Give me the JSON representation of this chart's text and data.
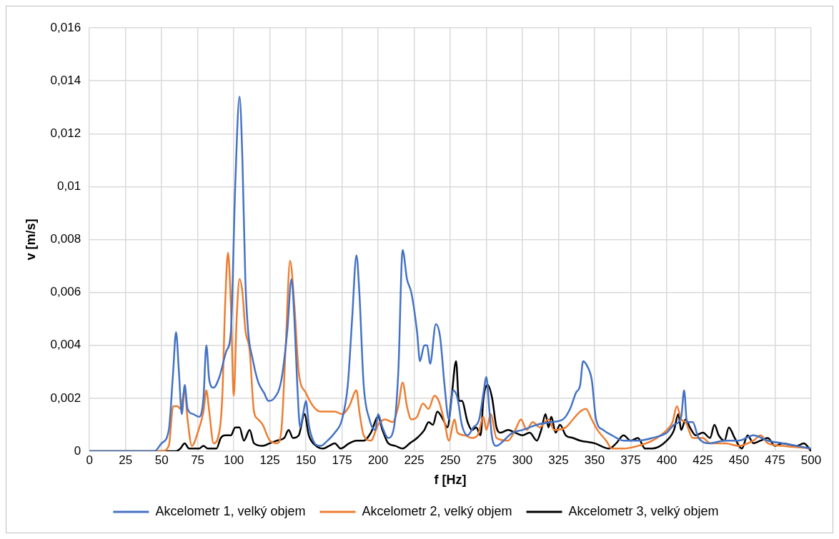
{
  "chart_data": {
    "type": "line",
    "xlabel": "f [Hz]",
    "ylabel": "v [m/s]",
    "xlim": [
      0,
      500
    ],
    "xticks": [
      0,
      25,
      50,
      75,
      100,
      125,
      150,
      175,
      200,
      225,
      250,
      275,
      300,
      325,
      350,
      375,
      400,
      425,
      450,
      475,
      500
    ],
    "ylim": [
      0,
      0.016
    ],
    "yticks": [
      {
        "value": 0,
        "label": "0"
      },
      {
        "value": 0.002,
        "label": "0,002"
      },
      {
        "value": 0.004,
        "label": "0,004"
      },
      {
        "value": 0.006,
        "label": "0,006"
      },
      {
        "value": 0.008,
        "label": "0,008"
      },
      {
        "value": 0.01,
        "label": "0,01"
      },
      {
        "value": 0.012,
        "label": "0,012"
      },
      {
        "value": 0.014,
        "label": "0,014"
      },
      {
        "value": 0.016,
        "label": "0,016"
      }
    ],
    "grid": true,
    "legend": "bottom",
    "marker": "none",
    "line_style": "solid",
    "series": [
      {
        "name": "Akcelometr 1, velký objem",
        "color": "#4472c4",
        "x": [
          0,
          45,
          50,
          55,
          58,
          60,
          62,
          64,
          66,
          68,
          72,
          76,
          79,
          81,
          83,
          86,
          90,
          95,
          98,
          101,
          104,
          106,
          108,
          110,
          113,
          117,
          121,
          124,
          128,
          133,
          137,
          140,
          142,
          144,
          146,
          148,
          150,
          152,
          155,
          160,
          165,
          170,
          175,
          179,
          182,
          185,
          187,
          190,
          194,
          198,
          200,
          203,
          207,
          211,
          214,
          217,
          220,
          223,
          227,
          229,
          232,
          234,
          236,
          240,
          243,
          246,
          249,
          252,
          255,
          258,
          262,
          266,
          270,
          273,
          275,
          277,
          279,
          282,
          287,
          293,
          300,
          310,
          320,
          328,
          333,
          337,
          340,
          342,
          345,
          348,
          351,
          356,
          362,
          370,
          380,
          390,
          400,
          405,
          410,
          412,
          414,
          418,
          422,
          430,
          440,
          450,
          460,
          470,
          480,
          490,
          500
        ],
        "values": [
          0,
          0,
          0.0003,
          0.0008,
          0.003,
          0.0045,
          0.003,
          0.0014,
          0.0025,
          0.0016,
          0.0014,
          0.0013,
          0.002,
          0.004,
          0.0027,
          0.0024,
          0.0028,
          0.0038,
          0.0045,
          0.01,
          0.0134,
          0.011,
          0.0065,
          0.0045,
          0.0035,
          0.0026,
          0.0022,
          0.0019,
          0.002,
          0.0027,
          0.0045,
          0.0065,
          0.005,
          0.0025,
          0.0009,
          0.0014,
          0.0019,
          0.001,
          0.0004,
          0.0002,
          0.0004,
          0.0007,
          0.0012,
          0.0025,
          0.005,
          0.0074,
          0.006,
          0.0025,
          0.0012,
          0.0008,
          0.0014,
          0.0009,
          0.0005,
          0.0009,
          0.003,
          0.0076,
          0.0065,
          0.006,
          0.0045,
          0.0034,
          0.004,
          0.004,
          0.0033,
          0.0048,
          0.0043,
          0.0025,
          0.0012,
          0.0023,
          0.002,
          0.001,
          0.0006,
          0.0009,
          0.0012,
          0.0022,
          0.0028,
          0.0016,
          0.0005,
          0.0002,
          0.0004,
          0.0007,
          0.0008,
          0.001,
          0.0011,
          0.0012,
          0.0016,
          0.0022,
          0.0025,
          0.0034,
          0.0032,
          0.0027,
          0.0012,
          0.0008,
          0.0006,
          0.0004,
          0.0004,
          0.0005,
          0.0007,
          0.001,
          0.0013,
          0.0023,
          0.0011,
          0.0011,
          0.0005,
          0.0003,
          0.0004,
          0.0004,
          0.0006,
          0.0004,
          0.0003,
          0.0002,
          0.0001
        ]
      },
      {
        "name": "Akcelometr 2, velký objem",
        "color": "#ed7d31",
        "x": [
          0,
          50,
          55,
          58,
          61,
          63,
          66,
          68,
          71,
          75,
          79,
          81,
          83,
          86,
          89,
          92,
          94,
          96,
          98,
          100,
          102,
          104,
          106,
          108,
          111,
          114,
          117,
          120,
          125,
          130,
          133,
          136,
          139,
          142,
          145,
          150,
          155,
          160,
          170,
          175,
          180,
          185,
          187,
          190,
          195,
          200,
          205,
          210,
          214,
          217,
          220,
          223,
          227,
          231,
          235,
          239,
          242,
          246,
          249,
          253,
          255,
          260,
          265,
          269,
          273,
          275,
          278,
          282,
          290,
          295,
          299,
          303,
          307,
          312,
          318,
          322,
          330,
          335,
          340,
          344,
          348,
          352,
          358,
          362,
          370,
          380,
          390,
          400,
          404,
          407,
          410,
          413,
          418,
          425,
          430,
          440,
          450,
          460,
          465,
          470,
          480,
          500
        ],
        "values": [
          0,
          0,
          0.0002,
          0.0017,
          0.0017,
          0.0016,
          0.0023,
          0.0012,
          0.0002,
          0.0007,
          0.0015,
          0.0023,
          0.0015,
          0.0003,
          0.0005,
          0.002,
          0.0055,
          0.0075,
          0.0055,
          0.0021,
          0.005,
          0.0065,
          0.006,
          0.0046,
          0.0038,
          0.0015,
          0.0012,
          0.001,
          0.0004,
          0.0003,
          0.0008,
          0.004,
          0.0072,
          0.0055,
          0.003,
          0.0022,
          0.0017,
          0.0015,
          0.0015,
          0.0014,
          0.0017,
          0.0023,
          0.0015,
          0.0006,
          0.0004,
          0.001,
          0.0012,
          0.0011,
          0.0017,
          0.0026,
          0.0017,
          0.0012,
          0.0013,
          0.0018,
          0.0016,
          0.0021,
          0.0019,
          0.0011,
          0.0004,
          0.0012,
          0.0007,
          0.0006,
          0.0005,
          0.0006,
          0.0013,
          0.0008,
          0.0014,
          0.0005,
          0.0004,
          0.0008,
          0.0012,
          0.0008,
          0.0011,
          0.0009,
          0.0012,
          0.0008,
          0.0009,
          0.0012,
          0.0015,
          0.0016,
          0.0012,
          0.0008,
          0.0004,
          0.0001,
          0.0001,
          0.0002,
          0.0004,
          0.0008,
          0.0011,
          0.0017,
          0.0012,
          0.0011,
          0.0005,
          0.0005,
          0.0003,
          0.0003,
          0.0002,
          0.0004,
          0.0006,
          0.0003,
          0.0002,
          0.0001
        ]
      },
      {
        "name": "Akcelometr 3, velký objem",
        "color": "#000000",
        "x": [
          0,
          60,
          63,
          66,
          69,
          76,
          79,
          82,
          88,
          91,
          94,
          98,
          101,
          104,
          107,
          111,
          114,
          120,
          125,
          130,
          135,
          138,
          141,
          145,
          149,
          152,
          157,
          162,
          166,
          170,
          174,
          180,
          185,
          190,
          195,
          200,
          203,
          207,
          212,
          217,
          222,
          227,
          232,
          235,
          238,
          241,
          245,
          248,
          251,
          254,
          256,
          258,
          262,
          265,
          268,
          271,
          273,
          276,
          279,
          282,
          285,
          290,
          295,
          300,
          305,
          310,
          313,
          316,
          318,
          320,
          323,
          326,
          330,
          335,
          340,
          350,
          360,
          365,
          370,
          375,
          380,
          385,
          390,
          400,
          405,
          408,
          410,
          413,
          416,
          420,
          425,
          430,
          433,
          436,
          440,
          443,
          447,
          452,
          456,
          460,
          465,
          470,
          475,
          480,
          490,
          495,
          500
        ],
        "values": [
          0,
          0,
          0.0001,
          0.0003,
          0.0001,
          0.0001,
          0.0002,
          0.0001,
          0.0001,
          0.0005,
          0.0006,
          0.0006,
          0.0009,
          0.0009,
          0.0004,
          0.0008,
          0.0003,
          0.0002,
          0.0003,
          0.0004,
          0.0005,
          0.0008,
          0.0005,
          0.0006,
          0.0014,
          0.0006,
          0.0002,
          0.0001,
          0.0002,
          0.0003,
          0.0001,
          0.0003,
          0.0004,
          0.0004,
          0.0007,
          0.0013,
          0.0008,
          0.0003,
          0.0002,
          0.0001,
          0.0003,
          0.0005,
          0.0008,
          0.0011,
          0.001,
          0.0015,
          0.0012,
          0.0009,
          0.0021,
          0.0034,
          0.0019,
          0.0019,
          0.0011,
          0.0008,
          0.0009,
          0.0006,
          0.002,
          0.0025,
          0.002,
          0.0009,
          0.0007,
          0.0008,
          0.0007,
          0.0006,
          0.0007,
          0.0004,
          0.0008,
          0.0014,
          0.0009,
          0.0013,
          0.0007,
          0.001,
          0.0006,
          0.0005,
          0.0004,
          0.0003,
          0.0001,
          0.0003,
          0.0006,
          0.0004,
          0.0005,
          0.0001,
          0.0001,
          0.0004,
          0.0008,
          0.0014,
          0.0008,
          0.0012,
          0.0009,
          0.0006,
          0.0007,
          0.0005,
          0.001,
          0.0006,
          0.0004,
          0.0009,
          0.0005,
          0.0001,
          0.0006,
          0.0003,
          0.0004,
          0.0005,
          0.0002,
          0.0003,
          0.0002,
          0.0003,
          0
        ]
      }
    ]
  }
}
